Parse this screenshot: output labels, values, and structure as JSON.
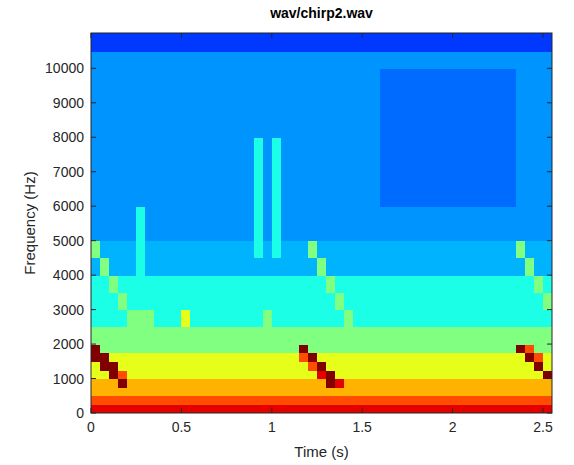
{
  "chart_data": {
    "type": "heatmap",
    "title": "wav/chirp2.wav",
    "x_label": "Time (s)",
    "y_label": "Frequency (Hz)",
    "xlim": [
      0,
      2.55
    ],
    "ylim": [
      0,
      11025
    ],
    "xticks": [
      0,
      0.5,
      1,
      1.5,
      2,
      2.5
    ],
    "yticks": [
      0,
      1000,
      2000,
      3000,
      4000,
      5000,
      6000,
      7000,
      8000,
      9000,
      10000
    ],
    "color_range": [
      0,
      10
    ],
    "x_edges": [
      0,
      0.05,
      0.1,
      0.15,
      0.2,
      0.25,
      0.3,
      0.35,
      0.4,
      0.45,
      0.5,
      0.55,
      0.6,
      0.65,
      0.7,
      0.75,
      0.8,
      0.85,
      0.9,
      0.95,
      1,
      1.05,
      1.1,
      1.15,
      1.2,
      1.25,
      1.3,
      1.35,
      1.4,
      1.45,
      1.5,
      1.55,
      1.6,
      1.65,
      1.7,
      1.75,
      1.8,
      1.85,
      1.9,
      1.95,
      2,
      2.05,
      2.1,
      2.15,
      2.2,
      2.25,
      2.3,
      2.35,
      2.4,
      2.45,
      2.5,
      2.55
    ],
    "y_edges": [
      0,
      250,
      500,
      750,
      1000,
      1250,
      1500,
      1750,
      2000,
      2500,
      3000,
      3500,
      4000,
      4500,
      5000,
      6000,
      7000,
      8000,
      9000,
      10000,
      10500,
      11025
    ],
    "cells": [
      [
        9,
        9,
        9,
        9,
        9,
        9,
        9,
        9,
        9,
        9,
        9,
        9,
        9,
        9,
        9,
        9,
        9,
        9,
        9,
        9,
        9,
        9,
        9,
        9,
        9,
        9,
        9,
        9,
        9,
        9,
        9,
        9,
        9,
        9,
        9,
        9,
        9,
        9,
        9,
        9,
        9,
        9,
        9,
        9,
        9,
        9,
        9,
        9,
        9,
        9,
        9
      ],
      [
        8,
        8,
        8,
        8,
        8,
        8,
        8,
        8,
        8,
        8,
        8,
        8,
        8,
        8,
        8,
        8,
        8,
        8,
        8,
        8,
        8,
        8,
        8,
        8,
        8,
        8,
        8,
        8,
        8,
        8,
        8,
        8,
        8,
        8,
        8,
        8,
        8,
        8,
        8,
        8,
        8,
        8,
        8,
        8,
        8,
        8,
        8,
        8,
        8,
        8,
        8
      ],
      [
        7,
        7,
        7,
        7,
        7,
        7,
        7,
        7,
        7,
        7,
        7,
        7,
        7,
        7,
        7,
        7,
        7,
        7,
        7,
        7,
        7,
        7,
        7,
        7,
        7,
        7,
        7,
        7,
        7,
        7,
        7,
        7,
        7,
        7,
        7,
        7,
        7,
        7,
        7,
        7,
        7,
        7,
        7,
        7,
        7,
        7,
        7,
        7,
        7,
        7,
        7
      ],
      [
        7,
        7,
        7,
        10,
        7,
        7,
        7,
        7,
        7,
        7,
        7,
        7,
        7,
        7,
        7,
        7,
        7,
        7,
        7,
        7,
        7,
        7,
        7,
        7,
        7,
        7,
        10,
        9,
        7,
        7,
        7,
        7,
        7,
        7,
        7,
        7,
        7,
        7,
        7,
        7,
        7,
        7,
        7,
        7,
        7,
        7,
        7,
        7,
        7,
        7,
        7
      ],
      [
        6,
        6,
        10,
        8,
        6,
        6,
        6,
        6,
        6,
        6,
        6,
        6,
        6,
        6,
        6,
        6,
        6,
        6,
        6,
        6,
        6,
        6,
        6,
        6,
        6,
        9,
        10,
        6,
        6,
        6,
        6,
        6,
        6,
        6,
        6,
        6,
        6,
        6,
        6,
        6,
        6,
        6,
        6,
        6,
        6,
        6,
        6,
        6,
        6,
        6,
        10
      ],
      [
        6,
        10,
        10,
        6,
        6,
        6,
        6,
        6,
        6,
        6,
        6,
        6,
        6,
        6,
        6,
        6,
        6,
        6,
        6,
        6,
        6,
        6,
        6,
        6,
        8,
        10,
        6,
        6,
        6,
        6,
        6,
        6,
        6,
        6,
        6,
        6,
        6,
        6,
        6,
        6,
        6,
        6,
        6,
        6,
        6,
        6,
        6,
        6,
        6,
        10,
        6
      ],
      [
        10,
        10,
        6,
        6,
        6,
        6,
        6,
        6,
        6,
        6,
        6,
        6,
        6,
        6,
        6,
        6,
        6,
        6,
        6,
        6,
        6,
        6,
        6,
        8,
        10,
        6,
        6,
        6,
        6,
        6,
        6,
        6,
        6,
        6,
        6,
        6,
        6,
        6,
        6,
        6,
        6,
        6,
        6,
        6,
        6,
        6,
        6,
        6,
        10,
        8,
        6
      ],
      [
        10,
        5,
        5,
        5,
        5,
        5,
        5,
        5,
        5,
        5,
        5,
        5,
        5,
        5,
        5,
        5,
        5,
        5,
        5,
        5,
        5,
        5,
        5,
        10,
        5,
        5,
        5,
        5,
        5,
        5,
        5,
        5,
        5,
        5,
        5,
        5,
        5,
        5,
        5,
        5,
        5,
        5,
        5,
        5,
        5,
        5,
        5,
        10,
        8,
        5,
        5
      ],
      [
        5,
        5,
        5,
        5,
        5,
        5,
        5,
        5,
        5,
        5,
        5,
        5,
        5,
        5,
        5,
        5,
        5,
        5,
        5,
        5,
        5,
        5,
        5,
        5,
        5,
        5,
        5,
        5,
        5,
        5,
        5,
        5,
        5,
        5,
        5,
        5,
        5,
        5,
        5,
        5,
        5,
        5,
        5,
        5,
        5,
        5,
        5,
        5,
        5,
        5,
        5
      ],
      [
        4,
        4,
        4,
        4,
        5,
        5,
        5,
        4,
        4,
        4,
        6,
        4,
        4,
        4,
        4,
        4,
        4,
        4,
        4,
        5,
        4,
        4,
        4,
        4,
        4,
        4,
        4,
        4,
        5,
        4,
        4,
        4,
        4,
        4,
        4,
        4,
        4,
        4,
        4,
        4,
        4,
        4,
        4,
        4,
        4,
        4,
        4,
        4,
        4,
        4,
        4
      ],
      [
        4,
        4,
        4,
        5,
        4,
        4,
        4,
        4,
        4,
        4,
        4,
        4,
        4,
        4,
        4,
        4,
        4,
        4,
        4,
        4,
        4,
        4,
        4,
        4,
        4,
        4,
        4,
        5,
        4,
        4,
        4,
        4,
        4,
        4,
        4,
        4,
        4,
        4,
        4,
        4,
        4,
        4,
        4,
        4,
        4,
        4,
        4,
        4,
        4,
        4,
        5
      ],
      [
        4,
        4,
        5,
        4,
        4,
        4,
        4,
        4,
        4,
        4,
        4,
        4,
        4,
        4,
        4,
        4,
        4,
        4,
        4,
        4,
        4,
        4,
        4,
        4,
        4,
        4,
        5,
        4,
        4,
        4,
        4,
        4,
        4,
        4,
        4,
        4,
        4,
        4,
        4,
        4,
        4,
        4,
        4,
        4,
        4,
        4,
        4,
        4,
        4,
        5,
        4
      ],
      [
        3,
        5,
        3,
        3,
        3,
        4,
        3,
        3,
        3,
        3,
        3,
        3,
        3,
        3,
        3,
        3,
        3,
        3,
        3,
        3,
        3,
        3,
        3,
        3,
        3,
        5,
        3,
        3,
        3,
        3,
        3,
        3,
        3,
        3,
        3,
        3,
        3,
        3,
        3,
        3,
        3,
        3,
        3,
        3,
        3,
        3,
        3,
        3,
        5,
        3,
        3
      ],
      [
        5,
        3,
        3,
        3,
        3,
        4,
        3,
        3,
        3,
        3,
        3,
        3,
        3,
        3,
        3,
        3,
        3,
        3,
        4,
        3,
        4,
        3,
        3,
        3,
        5,
        3,
        3,
        3,
        3,
        3,
        3,
        3,
        3,
        3,
        3,
        3,
        3,
        3,
        3,
        3,
        3,
        3,
        3,
        3,
        3,
        3,
        3,
        5,
        3,
        3,
        3
      ],
      [
        2.7,
        2.7,
        2.7,
        2.7,
        2.7,
        4,
        2.7,
        2.7,
        2.7,
        2.7,
        2.7,
        2.7,
        2.7,
        2.7,
        2.7,
        2.7,
        2.7,
        2.7,
        4,
        2.7,
        4,
        2.7,
        2.7,
        2.7,
        2.7,
        2.7,
        2.7,
        2.7,
        2.7,
        2.7,
        2.7,
        2.7,
        2.7,
        2.7,
        2.7,
        2.7,
        2.7,
        2.7,
        2.7,
        2.7,
        2.7,
        2.7,
        2.7,
        2.7,
        2.7,
        2.7,
        2.7,
        2.7,
        2.7,
        2.7,
        2.7
      ],
      [
        2.7,
        2.7,
        2.7,
        2.7,
        2.7,
        2.7,
        2.7,
        2.7,
        2.7,
        2.7,
        2.7,
        2.7,
        2.7,
        2.7,
        2.7,
        2.7,
        2.7,
        2.7,
        4,
        2.7,
        4,
        2.7,
        2.7,
        2.7,
        2.7,
        2.7,
        2.7,
        2.7,
        2.7,
        2.7,
        2.7,
        2.7,
        2.3,
        2.3,
        2.3,
        2.3,
        2.3,
        2.3,
        2.3,
        2.3,
        2.3,
        2.3,
        2.3,
        2.3,
        2.3,
        2.3,
        2.3,
        2.7,
        2.7,
        2.7,
        2.7
      ],
      [
        2.7,
        2.7,
        2.7,
        2.7,
        2.7,
        2.7,
        2.7,
        2.7,
        2.7,
        2.7,
        2.7,
        2.7,
        2.7,
        2.7,
        2.7,
        2.7,
        2.7,
        2.7,
        4,
        2.7,
        4,
        2.7,
        2.7,
        2.7,
        2.7,
        2.7,
        2.7,
        2.7,
        2.7,
        2.7,
        2.7,
        2.7,
        2.3,
        2.3,
        2.3,
        2.3,
        2.3,
        2.3,
        2.3,
        2.3,
        2.3,
        2.3,
        2.3,
        2.3,
        2.3,
        2.3,
        2.3,
        2.7,
        2.7,
        2.7,
        2.7
      ],
      [
        2.7,
        2.7,
        2.7,
        2.7,
        2.7,
        2.7,
        2.7,
        2.7,
        2.7,
        2.7,
        2.7,
        2.7,
        2.7,
        2.7,
        2.7,
        2.7,
        2.7,
        2.7,
        2.7,
        2.7,
        2.7,
        2.7,
        2.7,
        2.7,
        2.7,
        2.7,
        2.7,
        2.7,
        2.7,
        2.7,
        2.7,
        2.7,
        2.3,
        2.3,
        2.3,
        2.3,
        2.3,
        2.3,
        2.3,
        2.3,
        2.3,
        2.3,
        2.3,
        2.3,
        2.3,
        2.3,
        2.3,
        2.7,
        2.7,
        2.7,
        2.7
      ],
      [
        2.7,
        2.7,
        2.7,
        2.7,
        2.7,
        2.7,
        2.7,
        2.7,
        2.7,
        2.7,
        2.7,
        2.7,
        2.7,
        2.7,
        2.7,
        2.7,
        2.7,
        2.7,
        2.7,
        2.7,
        2.7,
        2.7,
        2.7,
        2.7,
        2.7,
        2.7,
        2.7,
        2.7,
        2.7,
        2.7,
        2.7,
        2.7,
        2.3,
        2.3,
        2.3,
        2.3,
        2.3,
        2.3,
        2.3,
        2.3,
        2.3,
        2.3,
        2.3,
        2.3,
        2.3,
        2.3,
        2.3,
        2.7,
        2.7,
        2.7,
        2.7
      ],
      [
        2.7,
        2.7,
        2.7,
        2.7,
        2.7,
        2.7,
        2.7,
        2.7,
        2.7,
        2.7,
        2.7,
        2.7,
        2.7,
        2.7,
        2.7,
        2.7,
        2.7,
        2.7,
        2.7,
        2.7,
        2.7,
        2.7,
        2.7,
        2.7,
        2.7,
        2.7,
        2.7,
        2.7,
        2.7,
        2.7,
        2.7,
        2.7,
        2.7,
        2.7,
        2.7,
        2.7,
        2.7,
        2.7,
        2.7,
        2.7,
        2.7,
        2.7,
        2.7,
        2.7,
        2.7,
        2.7,
        2.7,
        2.7,
        2.7,
        2.7,
        2.7
      ],
      [
        1.8,
        1.8,
        1.8,
        1.8,
        1.8,
        1.8,
        1.8,
        1.8,
        1.8,
        1.8,
        1.8,
        1.8,
        1.8,
        1.8,
        1.8,
        1.8,
        1.8,
        1.8,
        1.8,
        1.8,
        1.8,
        1.8,
        1.8,
        1.8,
        1.8,
        1.8,
        1.8,
        1.8,
        1.8,
        1.8,
        1.8,
        1.8,
        1.8,
        1.8,
        1.8,
        1.8,
        1.8,
        1.8,
        1.8,
        1.8,
        1.8,
        1.8,
        1.8,
        1.8,
        1.8,
        1.8,
        1.8,
        1.8,
        1.8,
        1.8,
        1.8
      ]
    ]
  }
}
